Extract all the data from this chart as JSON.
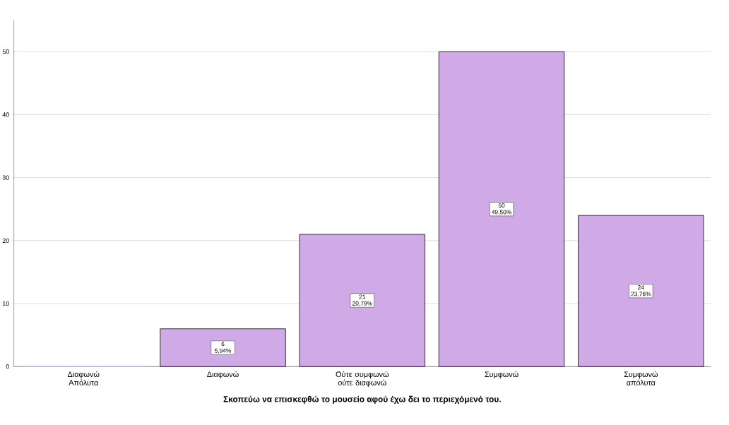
{
  "chart_data": {
    "type": "bar",
    "xlabel": "**Σκοπεύω να επισκεφθώ το μουσείο αφού έχω δει το περιεχόμενό του.**",
    "categories": [
      "Διαφωνώ Απόλυτα",
      "Διαφωνώ",
      "Ούτε συμφωνώ ούτε διαφωνώ",
      "Συμφωνώ",
      "Συμφωνώ απόλυτα"
    ],
    "values": [
      0,
      6,
      21,
      50,
      24
    ],
    "value_labels": [
      null,
      "6 5,94%",
      "21 20,79%",
      "50 49,50%",
      "24 23,76%"
    ],
    "color": "#d0aae6",
    "ylim": [
      0,
      55
    ],
    "yticks": [
      0,
      10,
      20,
      30,
      40,
      50
    ],
    "grid": "y"
  }
}
